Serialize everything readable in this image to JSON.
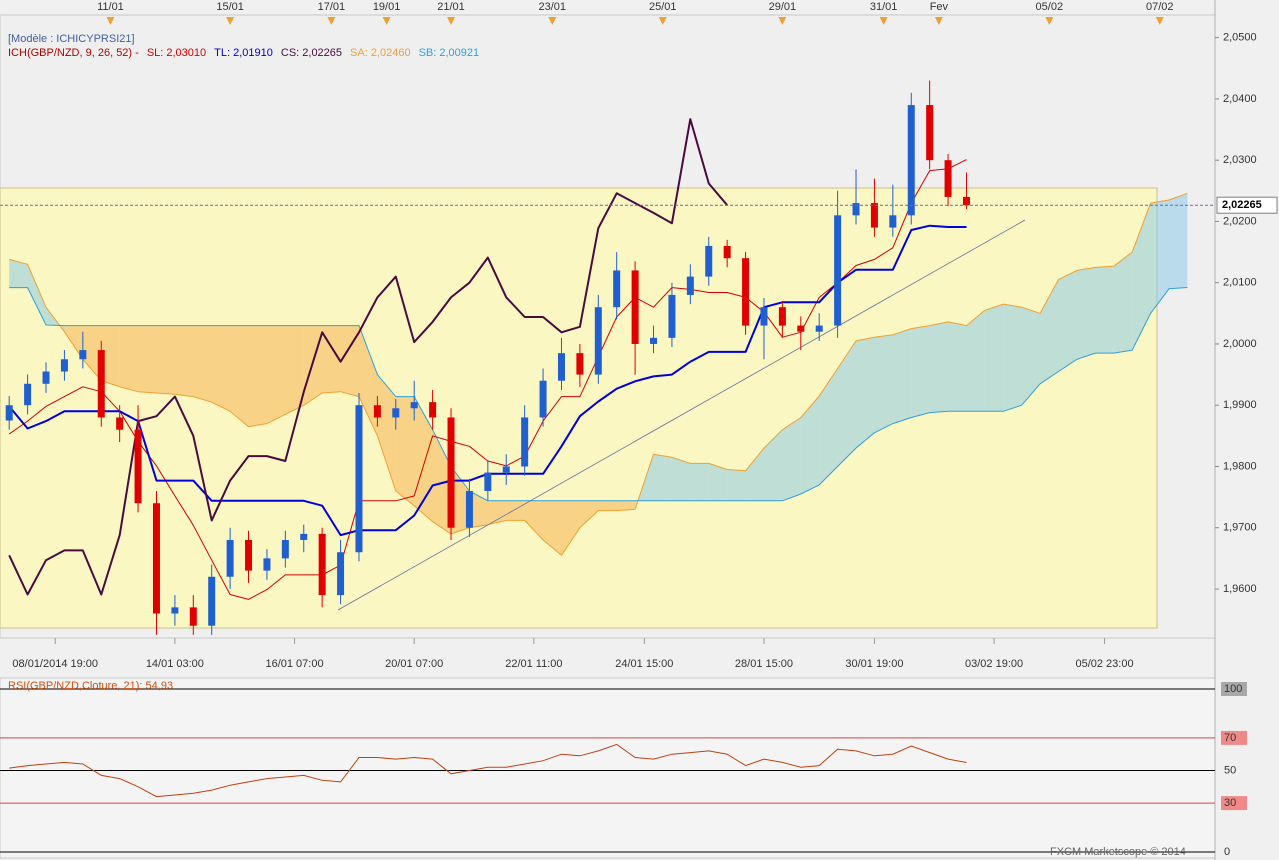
{
  "header": {
    "model": "[Modèle : ICHICYPRSI21]",
    "indicators": [
      {
        "text": "ICH(GBP/NZD, 9, 26, 52) -",
        "color": "#b00000"
      },
      {
        "text": "SL: 2,03010",
        "color": "#d00000"
      },
      {
        "text": "TL: 2,01910",
        "color": "#0000cc"
      },
      {
        "text": "CS: 2,02265",
        "color": "#4a0a40"
      },
      {
        "text": "SA: 2,02460",
        "color": "#f0a030"
      },
      {
        "text": "SB: 2,00921",
        "color": "#2fa0d8"
      }
    ]
  },
  "footer": "FXCM Marketscope © 2014",
  "chart_data": [
    {
      "type": "candlestick",
      "x": [
        0,
        1,
        2,
        3,
        4,
        5,
        6,
        7,
        8,
        9,
        10,
        11,
        12,
        13,
        14,
        15,
        16,
        17,
        18,
        19,
        20,
        21,
        22,
        23,
        24,
        25,
        26,
        27,
        28,
        29,
        30,
        31,
        32,
        33,
        34,
        35,
        36,
        37,
        38,
        39,
        40,
        41,
        42,
        43,
        44,
        45,
        46,
        47,
        48,
        49,
        50,
        51,
        52,
        53,
        54,
        55,
        56,
        57,
        58,
        59,
        60,
        61,
        62,
        63,
        64
      ],
      "open": [
        1.9875,
        1.99,
        1.9935,
        1.9955,
        1.9975,
        1.999,
        1.988,
        1.986,
        1.974,
        1.956,
        1.957,
        1.954,
        1.962,
        1.968,
        1.963,
        1.965,
        1.968,
        1.969,
        1.959,
        1.966,
        1.99,
        1.988,
        1.9895,
        1.9905,
        1.988,
        1.97,
        1.976,
        1.979,
        1.98,
        1.988,
        1.994,
        1.9985,
        1.995,
        2.006,
        2.012,
        2.0,
        2.001,
        2.008,
        2.011,
        2.016,
        2.014,
        2.003,
        2.006,
        2.003,
        2.002,
        2.003,
        2.021,
        2.023,
        2.019,
        2.021,
        2.039,
        2.03,
        2.024,
        null,
        null,
        null,
        null,
        null,
        null,
        null,
        null,
        null,
        null,
        null,
        null
      ],
      "high": [
        1.9915,
        1.995,
        1.997,
        1.999,
        2.002,
        2.0005,
        1.99,
        1.99,
        1.976,
        1.959,
        1.959,
        1.964,
        1.97,
        1.9695,
        1.9665,
        1.9695,
        1.9705,
        1.97,
        1.968,
        1.992,
        1.9915,
        1.991,
        1.994,
        1.9925,
        1.9895,
        1.978,
        1.981,
        1.982,
        1.99,
        1.996,
        2.001,
        2.0,
        2.008,
        2.015,
        2.0135,
        2.003,
        2.01,
        2.013,
        2.0175,
        2.017,
        2.015,
        2.0075,
        2.007,
        2.0045,
        2.005,
        2.025,
        2.0285,
        2.027,
        2.026,
        2.041,
        2.043,
        2.031,
        2.028,
        null,
        null,
        null,
        null,
        null,
        null,
        null,
        null,
        null,
        null,
        null,
        null
      ],
      "low": [
        1.986,
        1.9885,
        1.992,
        1.994,
        1.996,
        1.9865,
        1.984,
        1.9725,
        1.9525,
        1.954,
        1.9525,
        1.9525,
        1.96,
        1.961,
        1.9615,
        1.9635,
        1.966,
        1.957,
        1.9575,
        1.9645,
        1.9865,
        1.986,
        1.9875,
        1.986,
        1.968,
        1.9685,
        1.9745,
        1.977,
        1.9785,
        1.9865,
        1.9925,
        1.993,
        1.9935,
        2.004,
        1.995,
        1.9985,
        1.9995,
        2.0065,
        2.0095,
        2.0125,
        2.0015,
        1.9975,
        2.001,
        1.999,
        2.0005,
        2.001,
        2.0195,
        2.0175,
        2.0175,
        2.0195,
        2.0285,
        2.0225,
        2.022,
        null,
        null,
        null,
        null,
        null,
        null,
        null,
        null,
        null,
        null,
        null,
        null
      ],
      "close": [
        1.99,
        1.9935,
        1.9955,
        1.9975,
        1.999,
        1.988,
        1.986,
        1.974,
        1.956,
        1.957,
        1.954,
        1.962,
        1.968,
        1.963,
        1.965,
        1.968,
        1.969,
        1.959,
        1.966,
        1.99,
        1.988,
        1.9895,
        1.9905,
        1.988,
        1.97,
        1.976,
        1.979,
        1.98,
        1.988,
        1.994,
        1.9985,
        1.995,
        2.006,
        2.012,
        2.0,
        2.001,
        2.008,
        2.011,
        2.016,
        2.014,
        2.003,
        2.006,
        2.003,
        2.002,
        2.003,
        2.021,
        2.023,
        2.019,
        2.021,
        2.039,
        2.03,
        2.024,
        2.02265,
        null,
        null,
        null,
        null,
        null,
        null,
        null,
        null,
        null,
        null,
        null,
        null
      ],
      "up_color": "#1f5fd0",
      "down_color": "#e00000",
      "series": [
        {
          "name": "SA",
          "color": "#f0a030",
          "width": 1,
          "values": [
            2.0138,
            2.013,
            2.006,
            2.002,
            1.9975,
            1.994,
            1.993,
            1.9922,
            1.992,
            1.9918,
            1.9914,
            1.9905,
            1.989,
            1.9865,
            1.987,
            1.9885,
            1.99,
            1.992,
            1.9922,
            1.9914,
            1.985,
            1.976,
            1.9736,
            1.971,
            1.969,
            1.97,
            1.9705,
            1.9712,
            1.9712,
            1.968,
            1.9655,
            1.97,
            1.9728,
            1.9728,
            1.973,
            1.982,
            1.9815,
            1.9805,
            1.9805,
            1.9795,
            1.9793,
            1.983,
            1.986,
            1.988,
            1.9915,
            1.996,
            2.0005,
            2.0011,
            2.0015,
            2.0025,
            2.003,
            2.0036,
            2.003,
            2.0055,
            2.0065,
            2.006,
            2.005,
            2.0105,
            2.012,
            2.0125,
            2.0127,
            2.015,
            2.023,
            2.0235,
            2.0246
          ]
        },
        {
          "name": "SB",
          "color": "#2fa0d8",
          "width": 1,
          "values": [
            2.0092,
            2.0092,
            2.0031,
            2.003,
            2.003,
            2.003,
            2.003,
            2.003,
            2.003,
            2.003,
            2.003,
            2.003,
            2.003,
            2.003,
            2.003,
            2.003,
            2.003,
            2.003,
            2.003,
            2.003,
            1.995,
            1.9914,
            1.9914,
            1.986,
            1.98,
            1.976,
            1.9744,
            1.9744,
            1.9744,
            1.9744,
            1.9744,
            1.9744,
            1.9744,
            1.9744,
            1.9744,
            1.9744,
            1.9744,
            1.9744,
            1.9744,
            1.9744,
            1.9744,
            1.9744,
            1.9744,
            1.9755,
            1.977,
            1.98,
            1.983,
            1.9855,
            1.987,
            1.988,
            1.9888,
            1.989,
            1.989,
            1.989,
            1.989,
            1.99,
            1.9935,
            1.9955,
            1.9975,
            1.9985,
            1.9985,
            1.999,
            2.005,
            2.009,
            2.00921
          ]
        },
        {
          "name": "SL",
          "color": "#d00000",
          "width": 1,
          "values": [
            1.9853,
            1.9874,
            1.9898,
            1.9914,
            1.993,
            1.9922,
            1.989,
            1.9841,
            1.9801,
            1.9752,
            1.9704,
            1.9647,
            1.9591,
            1.9583,
            1.9599,
            1.9623,
            1.9623,
            1.9623,
            1.9639,
            1.9744,
            1.9744,
            1.9744,
            1.9752,
            1.985,
            1.9841,
            1.9833,
            1.9809,
            1.9801,
            1.9817,
            1.9874,
            1.9914,
            1.9914,
            1.9979,
            2.0044,
            2.0076,
            2.006,
            2.0092,
            2.0089,
            2.0084,
            2.0084,
            2.0076,
            2.0052,
            2.0011,
            2.0019,
            2.0076,
            2.01,
            2.0128,
            2.0138,
            2.0157,
            2.023,
            2.0283,
            2.0286,
            2.0301,
            null,
            null,
            null,
            null,
            null,
            null,
            null,
            null,
            null,
            null,
            null,
            null
          ]
        },
        {
          "name": "TL",
          "color": "#0000dd",
          "width": 2,
          "values": [
            1.9898,
            1.9862,
            1.9874,
            1.989,
            1.989,
            1.989,
            1.989,
            1.9874,
            1.9777,
            1.9777,
            1.9777,
            1.9744,
            1.9744,
            1.9744,
            1.9744,
            1.9744,
            1.9744,
            1.9736,
            1.9688,
            1.9696,
            1.9696,
            1.9696,
            1.972,
            1.9769,
            1.9777,
            1.9777,
            1.9788,
            1.9788,
            1.9788,
            1.9788,
            1.9833,
            1.9882,
            1.9906,
            1.9927,
            1.9939,
            1.9947,
            1.995,
            1.9971,
            1.9987,
            1.9987,
            1.9987,
            2.006,
            2.0068,
            2.0068,
            2.0068,
            2.01,
            2.0121,
            2.0121,
            2.0121,
            2.0186,
            2.0193,
            2.0191,
            2.0191,
            null,
            null,
            null,
            null,
            null,
            null,
            null,
            null,
            null,
            null,
            null,
            null
          ]
        },
        {
          "name": "CS",
          "color": "#4a0a40",
          "width": 2,
          "values": [
            1.9655,
            1.9591,
            1.9647,
            1.9663,
            1.9663,
            1.9591,
            1.9688,
            1.9874,
            1.9882,
            1.9914,
            1.985,
            1.9712,
            1.9777,
            1.9817,
            1.9817,
            1.9809,
            1.9922,
            2.0019,
            1.9971,
            2.0019,
            2.0076,
            2.011,
            2.0003,
            2.0036,
            2.0076,
            2.01,
            2.0141,
            2.0076,
            2.0044,
            2.0044,
            2.0019,
            2.0028,
            2.0189,
            2.0246,
            2.023,
            2.0214,
            2.0197,
            2.0367,
            2.0262,
            2.02265,
            null,
            null,
            null,
            null,
            null,
            null,
            null,
            null,
            null,
            null,
            null,
            null,
            null,
            null,
            null,
            null,
            null,
            null,
            null,
            null,
            null,
            null,
            null,
            null,
            null
          ]
        }
      ],
      "cloud_up_color": "#8ccbe8",
      "cloud_down_color": "#f5a640",
      "xlim": [
        -0.5,
        65.5
      ],
      "xticks": [
        {
          "value": 2.5,
          "label": "08/01/2014 19:00"
        },
        {
          "value": 9,
          "label": "14/01 03:00"
        },
        {
          "value": 15.5,
          "label": "16/01 07:00"
        },
        {
          "value": 22,
          "label": "20/01 07:00"
        },
        {
          "value": 28.5,
          "label": "22/01 11:00"
        },
        {
          "value": 34.5,
          "label": "24/01 15:00"
        },
        {
          "value": 41,
          "label": "28/01 15:00"
        },
        {
          "value": 47,
          "label": "30/01 19:00"
        },
        {
          "value": 53.5,
          "label": "03/02 19:00"
        },
        {
          "value": 59.5,
          "label": "05/02 23:00"
        }
      ],
      "x2ticks": [
        {
          "value": 5.5,
          "label": "11/01"
        },
        {
          "value": 12,
          "label": "15/01"
        },
        {
          "value": 17.5,
          "label": "17/01"
        },
        {
          "value": 20.5,
          "label": "19/01"
        },
        {
          "value": 24,
          "label": "21/01"
        },
        {
          "value": 29.5,
          "label": "23/01"
        },
        {
          "value": 35.5,
          "label": "25/01"
        },
        {
          "value": 42,
          "label": "29/01"
        },
        {
          "value": 47.5,
          "label": "31/01"
        },
        {
          "value": 50.5,
          "label": "Fev"
        },
        {
          "value": 56.5,
          "label": "05/02"
        },
        {
          "value": 62.5,
          "label": "07/02"
        }
      ],
      "ylim": [
        1.952,
        2.0537
      ],
      "yticks": [
        {
          "value": 2.05,
          "label": "2,0500"
        },
        {
          "value": 2.04,
          "label": "2,0400"
        },
        {
          "value": 2.03,
          "label": "2,0300"
        },
        {
          "value": 2.02,
          "label": "2,0200"
        },
        {
          "value": 2.01,
          "label": "2,0100"
        },
        {
          "value": 2.0,
          "label": "2,0000"
        },
        {
          "value": 1.99,
          "label": "1,9900"
        },
        {
          "value": 1.98,
          "label": "1,9800"
        },
        {
          "value": 1.97,
          "label": "1,9700"
        },
        {
          "value": 1.96,
          "label": "1,9600"
        }
      ],
      "last_price": {
        "value": 2.02265,
        "label": "2,02265"
      }
    },
    {
      "type": "line",
      "title": "RSI(GBP/NZD,Cloture, 21): 54,93",
      "title_color": "#d05010",
      "x": [
        0,
        1,
        2,
        3,
        4,
        5,
        6,
        7,
        8,
        9,
        10,
        11,
        12,
        13,
        14,
        15,
        16,
        17,
        18,
        19,
        20,
        21,
        22,
        23,
        24,
        25,
        26,
        27,
        28,
        29,
        30,
        31,
        32,
        33,
        34,
        35,
        36,
        37,
        38,
        39,
        40,
        41,
        42,
        43,
        44,
        45,
        46,
        47,
        48,
        49,
        50,
        51,
        52
      ],
      "values": [
        51.5,
        53,
        54,
        55,
        54,
        47,
        45,
        40,
        34,
        35,
        36,
        38,
        41,
        43,
        45,
        46,
        47,
        44,
        43,
        58,
        58,
        57,
        58,
        57,
        48,
        50,
        52,
        52,
        54,
        56,
        60,
        59,
        62,
        66,
        58,
        57,
        60,
        61,
        62,
        60,
        53,
        57,
        55,
        52,
        53,
        63,
        62,
        59,
        60,
        65,
        61,
        57,
        54.93
      ],
      "color": "#c04010",
      "xlim": [
        -0.5,
        65.5
      ],
      "ylim": [
        0,
        100
      ],
      "yticks": [
        100,
        70,
        50,
        30,
        0
      ],
      "level_colors": [
        "#000000",
        "#e04040",
        "#000000",
        "#e04040",
        "#000000"
      ],
      "label_fills": [
        "#a8a8a8",
        "#f08a8a",
        "none",
        "#f08a8a",
        "none"
      ]
    }
  ]
}
